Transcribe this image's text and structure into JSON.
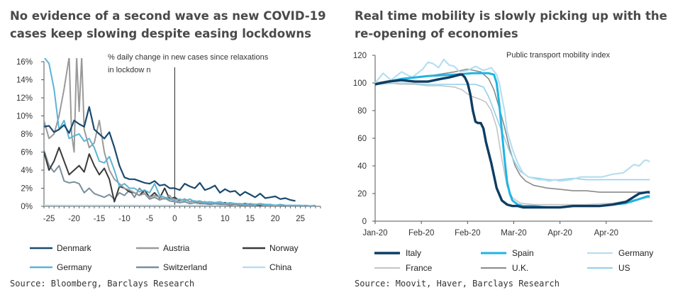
{
  "charts": {
    "left": {
      "title": "No evidence of a second wave as new COVID-19 cases keep slowing despite easing lockdowns",
      "source": "Source: Bloomberg, Barclays Research"
    },
    "right": {
      "title": "Real time mobility is slowly picking up with the re-opening of economies",
      "source": "Source: Moovit, Haver, Barclays Research"
    }
  },
  "chart_data": [
    {
      "type": "line",
      "title": "No evidence of a second wave as new COVID-19 cases keep slowing despite easing lockdowns",
      "annotation": "% daily change in new cases since relaxations in lockdow n",
      "xlabel": "",
      "ylabel": "",
      "xlim": [
        -26,
        29
      ],
      "ylim": [
        0,
        16
      ],
      "x_ticks": [
        -25,
        -20,
        -15,
        -10,
        -5,
        0,
        5,
        10,
        15,
        20,
        25
      ],
      "y_ticks": [
        0,
        2,
        4,
        6,
        8,
        10,
        12,
        14,
        16
      ],
      "y_tick_format": "%",
      "grid": false,
      "legend": "bottom",
      "series": [
        {
          "name": "Denmark",
          "color": "#1b4a6e",
          "width": 2.2,
          "x": [
            -26,
            -25,
            -24,
            -23,
            -22,
            -21,
            -20,
            -19,
            -18,
            -17,
            -16,
            -15,
            -14,
            -13,
            -12,
            -11,
            -10,
            -9,
            -8,
            -7,
            -6,
            -5,
            -4,
            -3,
            -2,
            -1,
            0,
            1,
            2,
            3,
            4,
            5,
            6,
            7,
            8,
            9,
            10,
            11,
            12,
            13,
            14,
            15,
            16,
            17,
            18,
            19,
            20,
            21,
            22,
            23,
            24
          ],
          "y": [
            8.8,
            8.9,
            8.2,
            8.5,
            9.0,
            8.1,
            9.5,
            9.1,
            8.8,
            11.0,
            8.5,
            8.0,
            7.5,
            8.2,
            6.5,
            4.5,
            3.2,
            3.0,
            3.0,
            2.8,
            2.6,
            2.5,
            2.8,
            2.3,
            2.4,
            2.0,
            2.0,
            1.8,
            2.5,
            2.2,
            2.0,
            2.6,
            1.8,
            2.0,
            2.3,
            1.5,
            1.9,
            1.6,
            1.7,
            1.2,
            1.6,
            1.3,
            1.0,
            1.4,
            0.9,
            1.0,
            1.1,
            0.8,
            0.9,
            0.7,
            0.6
          ]
        },
        {
          "name": "Austria",
          "color": "#9a9a9a",
          "width": 2.0,
          "x": [
            -26,
            -25,
            -24,
            -23,
            -22,
            -21,
            -20.5,
            -20,
            -19.5,
            -19,
            -18.5,
            -18,
            -17,
            -16,
            -15,
            -14,
            -13,
            -12,
            -11,
            -10,
            -9,
            -8,
            -7,
            -6,
            -5,
            -4,
            -3,
            -2,
            -1,
            0,
            1,
            2,
            3,
            4,
            5,
            6,
            7,
            8,
            9,
            10,
            11,
            12,
            13,
            14,
            15,
            16,
            17,
            18,
            19,
            20,
            21,
            22,
            23,
            24,
            25,
            26,
            27,
            28
          ],
          "y": [
            9.5,
            7.5,
            8.0,
            10.0,
            13.0,
            16.5,
            8.0,
            6.0,
            16.5,
            10.5,
            16.5,
            8.5,
            6.5,
            7.0,
            9.5,
            6.0,
            4.0,
            3.0,
            2.5,
            2.0,
            1.8,
            1.5,
            1.2,
            1.4,
            1.0,
            1.2,
            1.0,
            0.8,
            1.2,
            0.5,
            0.6,
            0.8,
            0.5,
            0.6,
            0.4,
            0.5,
            0.3,
            0.4,
            0.3,
            0.3,
            0.2,
            0.3,
            0.2,
            0.2,
            0.1,
            0.2,
            0.2,
            0.1,
            0.1,
            0.0,
            0.1,
            0.1,
            0.0,
            0.1,
            0.0,
            0.1,
            0.0,
            0.1
          ]
        },
        {
          "name": "Norway",
          "color": "#3a3a3a",
          "width": 2.0,
          "x": [
            -26,
            -25,
            -24,
            -23,
            -22,
            -21,
            -20,
            -19,
            -18,
            -17,
            -16,
            -15,
            -14,
            -13,
            -12,
            -11,
            -10,
            -9,
            -8,
            -7,
            -6,
            -5,
            -4,
            -3,
            -2,
            -1,
            0,
            1,
            2,
            3,
            4,
            5,
            6,
            7,
            8,
            9,
            10,
            11,
            12,
            13,
            14,
            15,
            16,
            17,
            18,
            19,
            20,
            21,
            22,
            23,
            24
          ],
          "y": [
            6.0,
            4.0,
            5.0,
            6.5,
            5.0,
            3.5,
            4.0,
            4.5,
            3.8,
            5.8,
            4.5,
            3.5,
            4.2,
            3.0,
            0.5,
            2.2,
            2.0,
            1.6,
            1.5,
            1.2,
            1.8,
            1.0,
            1.5,
            0.9,
            2.0,
            0.8,
            1.0,
            0.6,
            0.8,
            0.5,
            0.6,
            0.4,
            0.5,
            0.3,
            0.4,
            0.3,
            0.4,
            0.2,
            0.3,
            0.2,
            0.3,
            0.2,
            0.2,
            0.1,
            0.2,
            0.1,
            0.1,
            0.1,
            0.0,
            0.1,
            0.0
          ]
        },
        {
          "name": "Germany",
          "color": "#5cb4d6",
          "width": 2.0,
          "x": [
            -26,
            -25,
            -24,
            -23,
            -22,
            -21,
            -20,
            -19,
            -18,
            -17,
            -16,
            -15,
            -14,
            -13,
            -12,
            -11,
            -10,
            -9,
            -8,
            -7,
            -6,
            -5,
            -4,
            -3,
            -2,
            -1,
            0,
            1,
            2,
            3,
            4,
            5,
            6,
            7,
            8,
            9,
            10,
            11,
            12,
            13,
            14,
            15,
            16,
            17,
            18,
            19,
            20,
            21,
            22,
            23,
            24,
            25,
            26,
            27,
            28
          ],
          "y": [
            16.5,
            15.8,
            13.0,
            8.5,
            9.5,
            7.5,
            7.8,
            8.0,
            7.2,
            7.5,
            6.5,
            5.0,
            4.8,
            5.5,
            4.0,
            2.2,
            2.5,
            2.0,
            2.0,
            1.6,
            1.8,
            1.5,
            2.5,
            1.2,
            1.0,
            0.8,
            0.7,
            0.8,
            0.6,
            0.8,
            0.5,
            0.6,
            0.4,
            0.5,
            0.4,
            0.5,
            0.3,
            0.4,
            0.3,
            0.3,
            0.2,
            0.3,
            0.2,
            0.3,
            0.2,
            0.2,
            0.1,
            0.2,
            0.1,
            0.1,
            0.1,
            0.1,
            0.0,
            0.0,
            0.0
          ]
        },
        {
          "name": "Switzerland",
          "color": "#7a8f9c",
          "width": 2.0,
          "x": [
            -26,
            -25,
            -24,
            -23,
            -22,
            -21,
            -20,
            -19,
            -18,
            -17,
            -16,
            -15,
            -14,
            -13,
            -12,
            -11,
            -10,
            -9,
            -8,
            -7,
            -6,
            -5,
            -4,
            -3,
            -2,
            -1,
            0,
            1,
            2,
            3,
            4,
            5,
            6,
            7,
            8,
            9,
            10,
            11,
            12,
            13,
            14,
            15,
            16,
            17,
            18,
            19,
            20,
            21,
            22,
            23,
            24
          ],
          "y": [
            6.2,
            4.5,
            3.8,
            4.5,
            2.8,
            2.6,
            2.7,
            2.5,
            1.5,
            2.0,
            1.4,
            1.2,
            1.0,
            1.3,
            0.8,
            1.5,
            1.2,
            1.8,
            1.0,
            2.0,
            1.4,
            0.8,
            1.0,
            0.7,
            0.9,
            0.6,
            0.5,
            0.4,
            0.5,
            0.3,
            0.4,
            0.3,
            0.3,
            0.2,
            0.3,
            0.2,
            0.2,
            0.1,
            0.2,
            0.1,
            0.1,
            0.1,
            0.0,
            0.1,
            0.0,
            0.1,
            0.0,
            0.0,
            0.0,
            0.0,
            0.0
          ]
        },
        {
          "name": "China",
          "color": "#b9ddec",
          "width": 2.0,
          "x": [
            -26,
            -20,
            -15,
            -10,
            -5,
            0,
            5,
            10,
            15,
            20,
            25,
            28
          ],
          "y": [
            0.1,
            0.1,
            0.1,
            0.1,
            0.1,
            0.1,
            0.1,
            0.1,
            0.1,
            0.1,
            0.1,
            0.1
          ]
        }
      ]
    },
    {
      "type": "line",
      "title": "Real time mobility is slowly picking up with the re-opening of economies",
      "annotation": "Public transport mobility index",
      "xlabel": "",
      "ylabel": "",
      "x_tick_labels": [
        "Jan-20",
        "Feb-20",
        "Feb-20",
        "Mar-20",
        "Apr-20",
        "Apr-20"
      ],
      "x_tick_positions": [
        0,
        17.5,
        35,
        52.5,
        70,
        87.5
      ],
      "xlim": [
        0,
        105
      ],
      "ylim": [
        0,
        120
      ],
      "y_ticks": [
        0,
        20,
        40,
        60,
        80,
        100,
        120
      ],
      "grid": false,
      "legend": "bottom",
      "series": [
        {
          "name": "Italy",
          "color": "#0f3d62",
          "width": 3.4,
          "x": [
            0,
            5,
            10,
            15,
            20,
            25,
            28,
            30,
            32,
            33,
            34,
            35,
            36,
            37,
            38,
            39,
            40,
            41,
            42,
            44,
            46,
            48,
            50,
            52,
            54,
            56,
            60,
            65,
            70,
            75,
            80,
            85,
            90,
            95,
            100,
            103,
            104
          ],
          "y": [
            99,
            101,
            102,
            101,
            101,
            103,
            104,
            105,
            106,
            106,
            104,
            100,
            92,
            80,
            72,
            71,
            71,
            67,
            57,
            42,
            24,
            15,
            12,
            11,
            11,
            10,
            10,
            10,
            10,
            11,
            11,
            11,
            12,
            14,
            20,
            21,
            21
          ]
        },
        {
          "name": "Spain",
          "color": "#1fb4e4",
          "width": 3.0,
          "x": [
            0,
            10,
            20,
            30,
            37,
            43,
            45,
            46,
            47,
            48,
            49,
            50,
            51,
            52,
            54,
            56,
            60,
            65,
            70,
            75,
            80,
            85,
            90,
            95,
            100,
            103,
            104
          ],
          "y": [
            99,
            103,
            105,
            106,
            107,
            107,
            106,
            100,
            85,
            65,
            45,
            28,
            20,
            15,
            12,
            11,
            11,
            10,
            10,
            11,
            11,
            11,
            12,
            13,
            16,
            18,
            18
          ]
        },
        {
          "name": "Germany",
          "color": "#b6dff0",
          "width": 2.2,
          "x": [
            0,
            3,
            6,
            10,
            14,
            18,
            20,
            22,
            24,
            26,
            28,
            30,
            32,
            35,
            38,
            41,
            44,
            46,
            47,
            48,
            49,
            50,
            52,
            54,
            56,
            58,
            60,
            62,
            64,
            66,
            68,
            70,
            74,
            78,
            82,
            86,
            90,
            94,
            96,
            98,
            100,
            102,
            103,
            104
          ],
          "y": [
            100,
            107,
            102,
            108,
            104,
            110,
            115,
            114,
            111,
            117,
            113,
            112,
            108,
            109,
            112,
            109,
            111,
            106,
            100,
            90,
            80,
            65,
            52,
            42,
            35,
            32,
            31,
            30,
            30,
            29,
            30,
            29,
            30,
            32,
            32,
            32,
            34,
            35,
            38,
            41,
            40,
            44,
            44,
            43
          ]
        },
        {
          "name": "France",
          "color": "#c4c4c4",
          "width": 1.6,
          "x": [
            0,
            5,
            10,
            15,
            20,
            25,
            30,
            33,
            35,
            37,
            40,
            42,
            44,
            46,
            48,
            50,
            52,
            55,
            60,
            70,
            80,
            90,
            100,
            103,
            104
          ],
          "y": [
            100,
            100,
            99,
            99,
            98,
            98,
            97,
            95,
            92,
            90,
            88,
            86,
            80,
            68,
            45,
            25,
            17,
            13,
            12,
            12,
            12,
            13,
            16,
            17,
            17
          ]
        },
        {
          "name": "U.K.",
          "color": "#8a8a8a",
          "width": 1.6,
          "x": [
            0,
            10,
            20,
            30,
            35,
            40,
            43,
            45,
            47,
            49,
            51,
            53,
            55,
            57,
            60,
            65,
            70,
            75,
            80,
            85,
            90,
            95,
            100,
            103,
            104
          ],
          "y": [
            100,
            103,
            105,
            108,
            110,
            108,
            103,
            95,
            82,
            68,
            52,
            40,
            33,
            29,
            26,
            24,
            23,
            22,
            22,
            21,
            21,
            21,
            21,
            21,
            20
          ]
        },
        {
          "name": "US",
          "color": "#8fd0ea",
          "width": 1.6,
          "x": [
            0,
            10,
            20,
            30,
            38,
            41,
            43,
            45,
            47,
            49,
            51,
            53,
            55,
            58,
            62,
            66,
            70,
            75,
            80,
            85,
            90,
            95,
            100,
            103,
            104
          ],
          "y": [
            99,
            100,
            99,
            99,
            99,
            97,
            90,
            80,
            70,
            60,
            50,
            42,
            36,
            32,
            31,
            30,
            30,
            31,
            30,
            30,
            30,
            30,
            30,
            30,
            30
          ]
        }
      ]
    }
  ]
}
